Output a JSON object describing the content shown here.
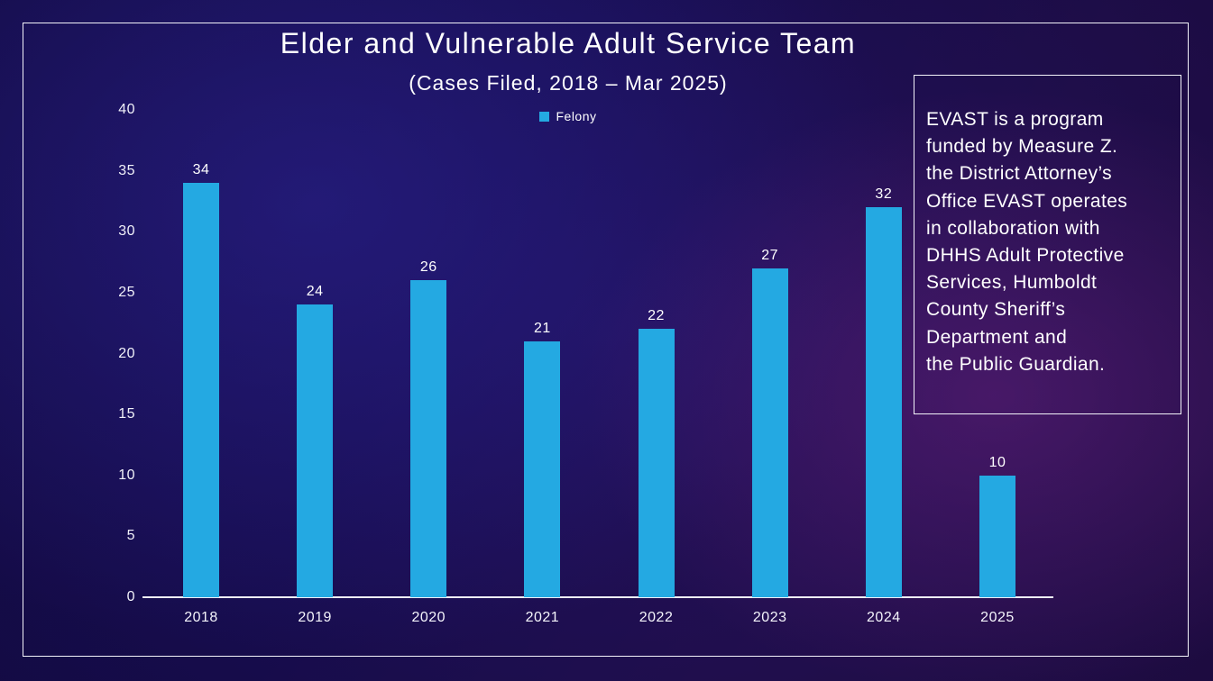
{
  "chart_data": {
    "type": "bar",
    "title": "Elder and Vulnerable Adult Service Team",
    "subtitle": "(Cases Filed, 2018 – Mar 2025)",
    "categories": [
      "2018",
      "2019",
      "2020",
      "2021",
      "2022",
      "2023",
      "2024",
      "2025"
    ],
    "series": [
      {
        "name": "Felony",
        "values": [
          34,
          24,
          26,
          21,
          22,
          27,
          32,
          10
        ]
      }
    ],
    "ylim": [
      0,
      40
    ],
    "yticks": [
      0,
      5,
      10,
      15,
      20,
      25,
      30,
      35,
      40
    ],
    "bar_color": "#24A9E2",
    "axis_color": "#EEEEF6",
    "label_color": "#FFFFFF",
    "legend_position": "top-center",
    "grid": false,
    "data_labels": true
  },
  "infobox": {
    "lines": [
      "EVAST is a program",
      "funded by Measure Z.",
      "the District Attorney’s",
      "Office EVAST operates",
      "in collaboration with",
      "DHHS Adult Protective",
      "Services, Humboldt",
      "County Sheriff’s",
      "Department and",
      "the Public Guardian."
    ]
  },
  "colors": {
    "accent_bar": "#24A9E2",
    "background_blue": "#1B0E5A",
    "background_purple": "#2E0F4E",
    "border_white": "#F3F3FA"
  }
}
